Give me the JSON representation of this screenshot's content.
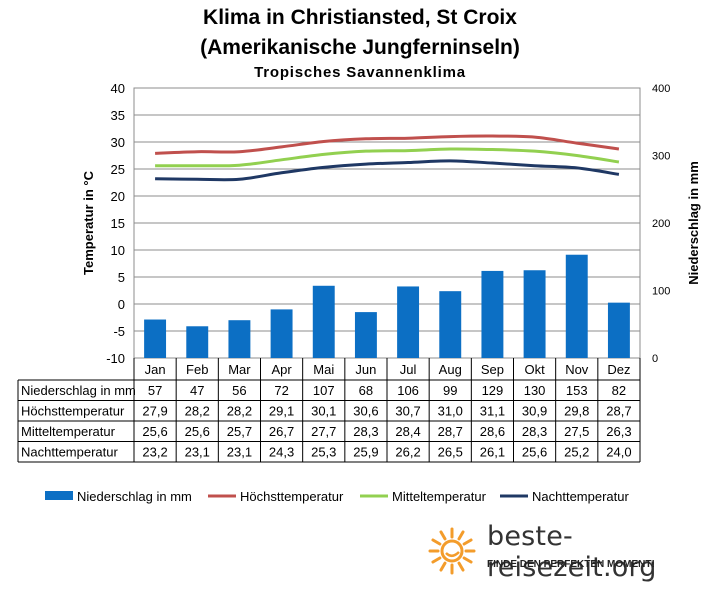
{
  "header": {
    "title": "Klima in Christiansted,  St Croix",
    "subtitle": "(Amerikanische  Jungferninseln)",
    "climate_type": "Tropisches Savannenklima"
  },
  "chart_data": {
    "type": "bar+line",
    "categories": [
      "Jan",
      "Feb",
      "Mar",
      "Apr",
      "Mai",
      "Jun",
      "Jul",
      "Aug",
      "Sep",
      "Okt",
      "Nov",
      "Dez"
    ],
    "ylabel_left": "Temperatur in °C",
    "ylabel_right": "Niederschlag in mm",
    "yticks_left": [
      "-10",
      "-5",
      "0",
      "5",
      "10",
      "15",
      "20",
      "25",
      "30",
      "35",
      "40"
    ],
    "yticks_right": [
      "0",
      "100",
      "200",
      "300",
      "400"
    ],
    "ylim_left": [
      -10,
      40
    ],
    "ylim_right": [
      0,
      400
    ],
    "grid": "horizontal",
    "series": [
      {
        "name": "Niederschlag in mm",
        "type": "bar",
        "axis": "right",
        "color": "#0c6fc4",
        "values": [
          57,
          47,
          56,
          72,
          107,
          68,
          106,
          99,
          129,
          130,
          153,
          82
        ],
        "labels": [
          "57",
          "47",
          "56",
          "72",
          "107",
          "68",
          "106",
          "99",
          "129",
          "130",
          "153",
          "82"
        ]
      },
      {
        "name": "Höchsttemperatur",
        "type": "line",
        "axis": "left",
        "color": "#c0504d",
        "values": [
          27.9,
          28.2,
          28.2,
          29.1,
          30.1,
          30.6,
          30.7,
          31.0,
          31.1,
          30.9,
          29.8,
          28.7
        ],
        "labels": [
          "27,9",
          "28,2",
          "28,2",
          "29,1",
          "30,1",
          "30,6",
          "30,7",
          "31,0",
          "31,1",
          "30,9",
          "29,8",
          "28,7"
        ]
      },
      {
        "name": "Mitteltemperatur",
        "type": "line",
        "axis": "left",
        "color": "#92d050",
        "values": [
          25.6,
          25.6,
          25.7,
          26.7,
          27.7,
          28.3,
          28.4,
          28.7,
          28.6,
          28.3,
          27.5,
          26.3
        ],
        "labels": [
          "25,6",
          "25,6",
          "25,7",
          "26,7",
          "27,7",
          "28,3",
          "28,4",
          "28,7",
          "28,6",
          "28,3",
          "27,5",
          "26,3"
        ]
      },
      {
        "name": "Nachttemperatur",
        "type": "line",
        "axis": "left",
        "color": "#1f3864",
        "values": [
          23.2,
          23.1,
          23.1,
          24.3,
          25.3,
          25.9,
          26.2,
          26.5,
          26.1,
          25.6,
          25.2,
          24.0
        ],
        "labels": [
          "23,2",
          "23,1",
          "23,1",
          "24,3",
          "25,3",
          "25,9",
          "26,2",
          "26,5",
          "26,1",
          "25,6",
          "25,2",
          "24,0"
        ]
      }
    ],
    "table_rows": [
      "Niederschlag in mm",
      "Höchsttemperatur",
      "Mitteltemperatur",
      "Nachttemperatur"
    ],
    "legend_position": "bottom"
  },
  "branding": {
    "name": "beste-reisezeit.org",
    "slogan": "FINDE DEN PERFEKTEN MOMENT!",
    "sun_color": "#f39c2b"
  }
}
